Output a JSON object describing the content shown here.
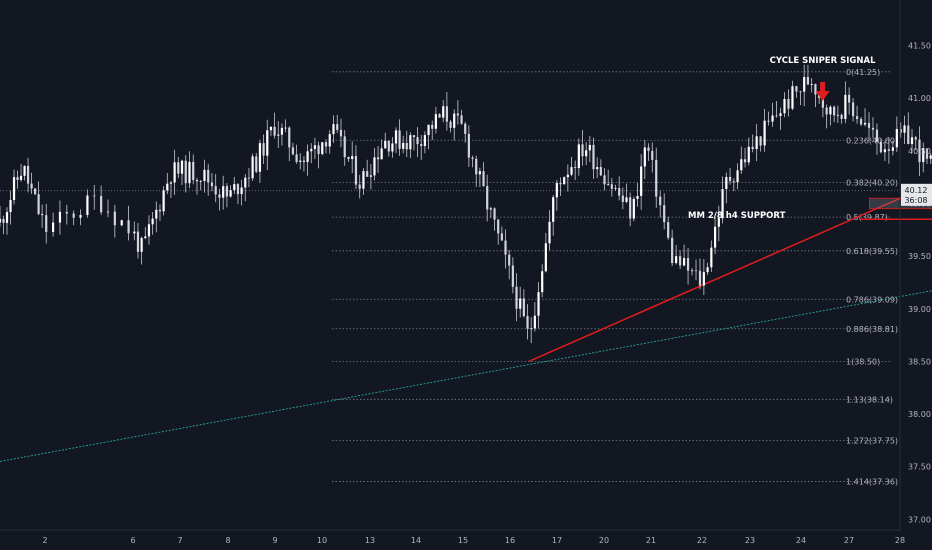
{
  "chart_data": {
    "type": "candlestick",
    "grid": false,
    "y_axis": {
      "range": [
        36.95,
        41.55
      ],
      "ticks": [
        41.5,
        41.0,
        40.5,
        40.0,
        39.5,
        39.0,
        38.5,
        38.0,
        37.5,
        37.0
      ],
      "tick_labels": [
        "41.50",
        "41.00",
        "40.50",
        "40.00",
        "39.50",
        "39.00",
        "38.50",
        "38.00",
        "37.50",
        "37.00"
      ]
    },
    "x_axis": {
      "tick_labels": [
        "2",
        "6",
        "7",
        "8",
        "9",
        "10",
        "13",
        "14",
        "15",
        "16",
        "17",
        "20",
        "21",
        "22",
        "23",
        "24",
        "27",
        "28"
      ]
    },
    "current_price": {
      "value": 40.12,
      "label": "40.12",
      "countdown": "36:08"
    },
    "fibonacci": [
      {
        "ratio": "0",
        "price": 41.25,
        "label": "0(41.25)"
      },
      {
        "ratio": "0.236",
        "price": 40.6,
        "label": "0.236(40.60)"
      },
      {
        "ratio": "0.382",
        "price": 40.2,
        "label": "0.382(40.20)"
      },
      {
        "ratio": "0.5",
        "price": 39.87,
        "label": "0.5(39.87)"
      },
      {
        "ratio": "0.618",
        "price": 39.55,
        "label": "0.618(39.55)"
      },
      {
        "ratio": "0.786",
        "price": 39.09,
        "label": "0.786(39.09)"
      },
      {
        "ratio": "0.886",
        "price": 38.81,
        "label": "0.886(38.81)"
      },
      {
        "ratio": "1",
        "price": 38.5,
        "label": "1(38.50)"
      },
      {
        "ratio": "1.13",
        "price": 38.14,
        "label": "1.13(38.14)"
      },
      {
        "ratio": "1.272",
        "price": 37.75,
        "label": "1.272(37.75)"
      },
      {
        "ratio": "1.414",
        "price": 37.36,
        "label": "1.414(37.36)"
      }
    ],
    "annotations": {
      "signal_text": "CYCLE SNIPER SIGNAL",
      "support_text": "MM 2/8 h4 SUPPORT",
      "support_level": 39.85
    },
    "trendlines": [
      {
        "name": "red-trendline",
        "from": [
          10.4,
          38.5
        ],
        "to": [
          23.0,
          41.05
        ],
        "color": "#e01d1d"
      },
      {
        "name": "teal-trendline",
        "from": [
          0.0,
          37.55
        ],
        "to": [
          26.8,
          39.85
        ],
        "color": "#26a69a"
      }
    ],
    "zones": [
      {
        "name": "small-zone",
        "x": [
          17.4,
          21.3
        ],
        "y": [
          39.95,
          40.05
        ]
      },
      {
        "name": "target-zone",
        "x": [
          20.6,
          23.3
        ],
        "y": [
          39.24,
          39.44
        ]
      }
    ],
    "price_path": [
      [
        0.0,
        39.82
      ],
      [
        0.5,
        40.35
      ],
      [
        1.0,
        39.75
      ],
      [
        1.6,
        40.05
      ],
      [
        2.2,
        39.55
      ],
      [
        2.8,
        40.3
      ],
      [
        3.4,
        40.3
      ],
      [
        4.0,
        40.05
      ],
      [
        4.6,
        40.4
      ],
      [
        5.0,
        40.75
      ],
      [
        5.6,
        40.4
      ],
      [
        6.2,
        40.7
      ],
      [
        6.8,
        40.2
      ],
      [
        7.3,
        40.6
      ],
      [
        8.0,
        40.6
      ],
      [
        8.6,
        40.85
      ],
      [
        9.0,
        40.7
      ],
      [
        9.8,
        39.6
      ],
      [
        10.4,
        38.72
      ],
      [
        11.0,
        40.2
      ],
      [
        11.6,
        40.55
      ],
      [
        12.2,
        40.15
      ],
      [
        12.6,
        39.9
      ],
      [
        12.9,
        40.58
      ],
      [
        13.4,
        39.5
      ],
      [
        14.0,
        39.25
      ],
      [
        14.5,
        40.2
      ],
      [
        15.0,
        40.5
      ],
      [
        15.6,
        40.9
      ],
      [
        16.2,
        41.2
      ],
      [
        16.6,
        40.85
      ],
      [
        17.0,
        40.95
      ],
      [
        17.6,
        40.55
      ],
      [
        18.2,
        40.65
      ],
      [
        18.6,
        40.35
      ],
      [
        19.0,
        40.5
      ],
      [
        19.6,
        40.25
      ],
      [
        20.2,
        40.12
      ]
    ]
  }
}
